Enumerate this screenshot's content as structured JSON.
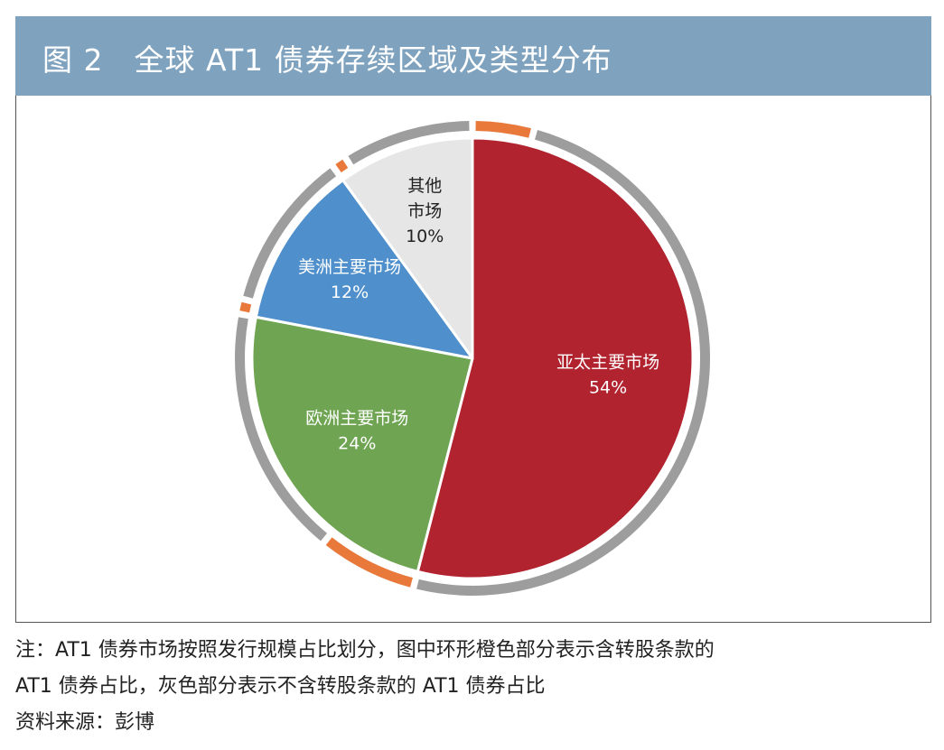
{
  "title": "图 2　全球 AT1 债券存续区域及类型分布",
  "note_line1": "注：AT1 债券市场按照发行规模占比划分，图中环形橙色部分表示含转股条款的",
  "note_line2": "AT1 债券占比，灰色部分表示不含转股条款的 AT1 债券占比",
  "source": "资料来源：彭博",
  "chart_data": {
    "type": "pie",
    "start": "12 o'clock",
    "direction": "clockwise",
    "slices": [
      {
        "label": "亚太主要市场",
        "value": 54,
        "value_label": "54%",
        "color": "#b0232f",
        "text_color": "#ffffff",
        "ring": {
          "orange_share": 0.07,
          "gray_share": 0.93
        }
      },
      {
        "label": "欧洲主要市场",
        "value": 24,
        "value_label": "24%",
        "color": "#6fa552",
        "text_color": "#ffffff",
        "ring": {
          "orange_share": 0.27,
          "gray_share": 0.73
        }
      },
      {
        "label": "美洲主要市场",
        "value": 12,
        "value_label": "12%",
        "color": "#4f8fcb",
        "text_color": "#ffffff",
        "ring": {
          "orange_share": 0.05,
          "gray_share": 0.95
        }
      },
      {
        "label": "其他\n市场",
        "value": 10,
        "value_label": "10%",
        "color": "#e6e6e6",
        "text_color": "#222222",
        "ring": {
          "orange_share": 0.06,
          "gray_share": 0.94
        }
      }
    ],
    "ring_colors": {
      "orange": "#e8793a",
      "gray": "#9d9d9d"
    }
  }
}
